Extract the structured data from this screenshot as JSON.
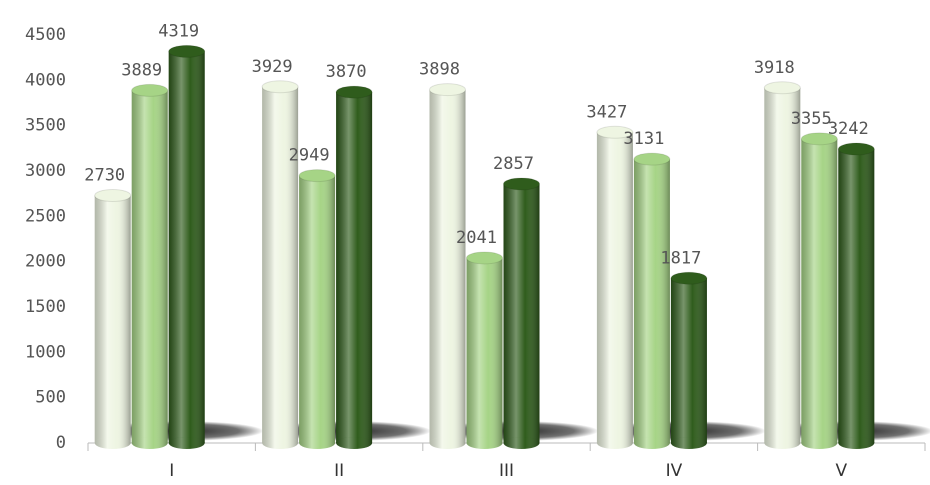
{
  "chart_data": {
    "type": "bar",
    "categories": [
      "I",
      "II",
      "III",
      "IV",
      "V"
    ],
    "series": [
      {
        "color": "#eef5e2",
        "values": [
          2730,
          3929,
          3898,
          3427,
          3918
        ]
      },
      {
        "color": "#a6d486",
        "values": [
          3889,
          2949,
          2041,
          3131,
          3355
        ]
      },
      {
        "color": "#2f5c1c",
        "values": [
          4319,
          3870,
          2857,
          1817,
          3242
        ]
      }
    ],
    "ylim": [
      0,
      4500
    ],
    "yticks": [
      0,
      500,
      1000,
      1500,
      2000,
      2500,
      3000,
      3500,
      4000,
      4500
    ],
    "grid": false
  }
}
